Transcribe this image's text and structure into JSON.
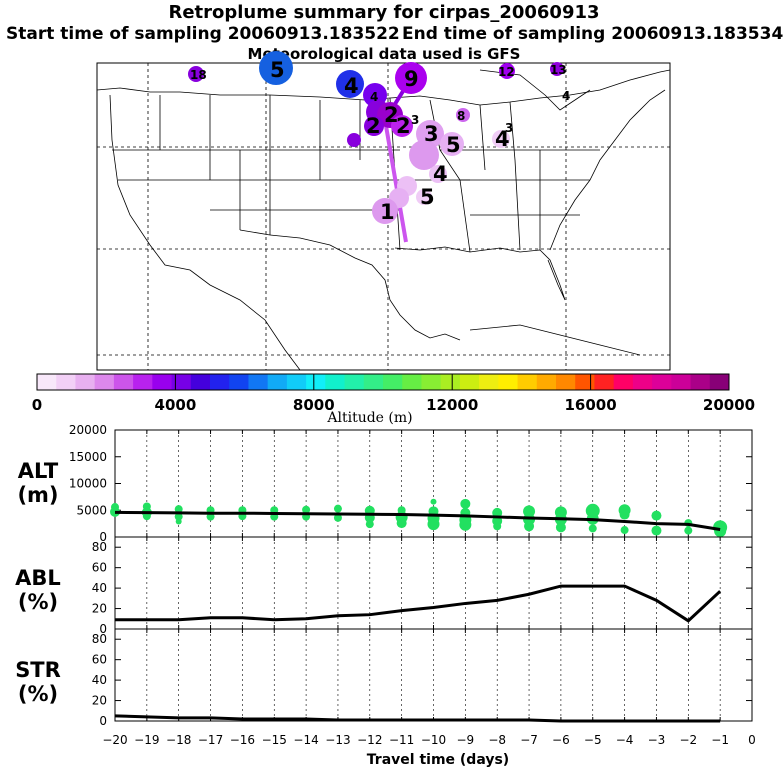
{
  "header": {
    "title": "Retroplume summary for cirpas_20060913",
    "start": "Start time of sampling 20060913.183522",
    "end": "End time of sampling 20060913.183534",
    "met": "Meteorological data used is GFS"
  },
  "map_labels": [
    {
      "text": "5",
      "day": -5
    },
    {
      "text": "18",
      "day": -18
    },
    {
      "text": "9",
      "day": -9
    },
    {
      "text": "4",
      "day": -4
    },
    {
      "text": "12",
      "day": -12
    },
    {
      "text": "13",
      "day": -13
    },
    {
      "text": "4",
      "day": -4
    },
    {
      "text": "3",
      "day": -3
    },
    {
      "text": "3",
      "day": -3
    },
    {
      "text": "5",
      "day": -5
    },
    {
      "text": "4",
      "day": -4
    },
    {
      "text": "4",
      "day": -4
    },
    {
      "text": "5",
      "day": -5
    },
    {
      "text": "1",
      "day": -1
    },
    {
      "text": "2",
      "day": -2
    },
    {
      "text": "2",
      "day": -2
    },
    {
      "text": "3",
      "day": -3
    },
    {
      "text": "2",
      "day": -2
    },
    {
      "text": "8",
      "day": -8
    },
    {
      "text": "4",
      "day": -4
    }
  ],
  "colorbar": {
    "ticks": [
      "0",
      "4000",
      "8000",
      "12000",
      "16000",
      "20000"
    ],
    "label": "Altitude (m)",
    "min": 0,
    "max": 20000
  },
  "chart_data": [
    {
      "type": "line",
      "title": "ALT (m)",
      "label_line1": "ALT",
      "label_line2": "(m)",
      "ylim": [
        0,
        20000
      ],
      "yticks": [
        "0",
        "5000",
        "10000",
        "15000",
        "20000"
      ],
      "x": [
        -20,
        -19,
        -18,
        -17,
        -16,
        -15,
        -14,
        -13,
        -12,
        -11,
        -10,
        -9,
        -8,
        -7,
        -6,
        -5,
        -4,
        -3,
        -2,
        -1
      ],
      "values": [
        4600,
        4550,
        4500,
        4450,
        4450,
        4400,
        4350,
        4300,
        4250,
        4200,
        4100,
        3950,
        3750,
        3550,
        3400,
        3250,
        2900,
        2500,
        2350,
        1400
      ],
      "scatter_color": "#22e060",
      "scatter": [
        [
          -20,
          5600,
          4
        ],
        [
          -20,
          4700,
          5
        ],
        [
          -19,
          5700,
          4
        ],
        [
          -19,
          4600,
          5
        ],
        [
          -19,
          3900,
          4
        ],
        [
          -18,
          5200,
          4
        ],
        [
          -18,
          3800,
          4
        ],
        [
          -18,
          2900,
          3
        ],
        [
          -17,
          5000,
          4
        ],
        [
          -17,
          3800,
          4
        ],
        [
          -16,
          5000,
          4
        ],
        [
          -16,
          3900,
          4
        ],
        [
          -15,
          5000,
          4
        ],
        [
          -15,
          3800,
          4
        ],
        [
          -14,
          5100,
          4
        ],
        [
          -14,
          3800,
          4
        ],
        [
          -13,
          5300,
          4
        ],
        [
          -13,
          3600,
          4
        ],
        [
          -12,
          4900,
          5
        ],
        [
          -12,
          3600,
          5
        ],
        [
          -12,
          2400,
          4
        ],
        [
          -11,
          5000,
          4
        ],
        [
          -11,
          3700,
          6
        ],
        [
          -11,
          2600,
          5
        ],
        [
          -10,
          6600,
          3
        ],
        [
          -10,
          4800,
          5
        ],
        [
          -10,
          3500,
          6
        ],
        [
          -10,
          2400,
          6
        ],
        [
          -9,
          6200,
          5
        ],
        [
          -9,
          4500,
          5
        ],
        [
          -9,
          3200,
          6
        ],
        [
          -9,
          2300,
          6
        ],
        [
          -8,
          4500,
          5
        ],
        [
          -8,
          3000,
          5
        ],
        [
          -8,
          2000,
          4
        ],
        [
          -7,
          4800,
          6
        ],
        [
          -7,
          3300,
          6
        ],
        [
          -7,
          2000,
          5
        ],
        [
          -6,
          4600,
          6
        ],
        [
          -6,
          3300,
          6
        ],
        [
          -6,
          1800,
          5
        ],
        [
          -5,
          4900,
          7
        ],
        [
          -5,
          3400,
          6
        ],
        [
          -5,
          1600,
          4
        ],
        [
          -4,
          5000,
          6
        ],
        [
          -4,
          4200,
          5
        ],
        [
          -4,
          1300,
          4
        ],
        [
          -3,
          4000,
          5
        ],
        [
          -3,
          1200,
          5
        ],
        [
          -2,
          2600,
          4
        ],
        [
          -2,
          1200,
          4
        ],
        [
          -1,
          1800,
          7
        ],
        [
          -1,
          1100,
          6
        ]
      ]
    },
    {
      "type": "line",
      "title": "ABL (%)",
      "label_line1": "ABL",
      "label_line2": "(%)",
      "ylim": [
        0,
        90
      ],
      "yticks": [
        "0",
        "20",
        "40",
        "60",
        "80"
      ],
      "x": [
        -20,
        -19,
        -18,
        -17,
        -16,
        -15,
        -14,
        -13,
        -12,
        -11,
        -10,
        -9,
        -8,
        -7,
        -6,
        -5,
        -4,
        -3,
        -2,
        -1
      ],
      "values": [
        9,
        9,
        9,
        11,
        11,
        9,
        10,
        13,
        14,
        18,
        21,
        25,
        28,
        34,
        42,
        42,
        42,
        28,
        8,
        37
      ]
    },
    {
      "type": "line",
      "title": "STR (%)",
      "label_line1": "STR",
      "label_line2": "(%)",
      "ylim": [
        0,
        90
      ],
      "yticks": [
        "0",
        "20",
        "40",
        "60",
        "80"
      ],
      "x": [
        -20,
        -19,
        -18,
        -17,
        -16,
        -15,
        -14,
        -13,
        -12,
        -11,
        -10,
        -9,
        -8,
        -7,
        -6,
        -5,
        -4,
        -3,
        -2,
        -1
      ],
      "values": [
        5,
        4,
        3,
        3,
        2,
        2,
        2,
        1,
        1,
        1,
        1,
        1,
        1,
        1,
        0,
        0,
        0,
        0,
        0,
        0
      ]
    }
  ],
  "xaxis": {
    "ticks": [
      "−20",
      "−19",
      "−18",
      "−17",
      "−16",
      "−15",
      "−14",
      "−13",
      "−12",
      "−11",
      "−10",
      "−9",
      "−8",
      "−7",
      "−6",
      "−5",
      "−4",
      "−3",
      "−2",
      "−1",
      "0"
    ],
    "label": "Travel time (days)",
    "xlim": [
      -20,
      0
    ]
  }
}
